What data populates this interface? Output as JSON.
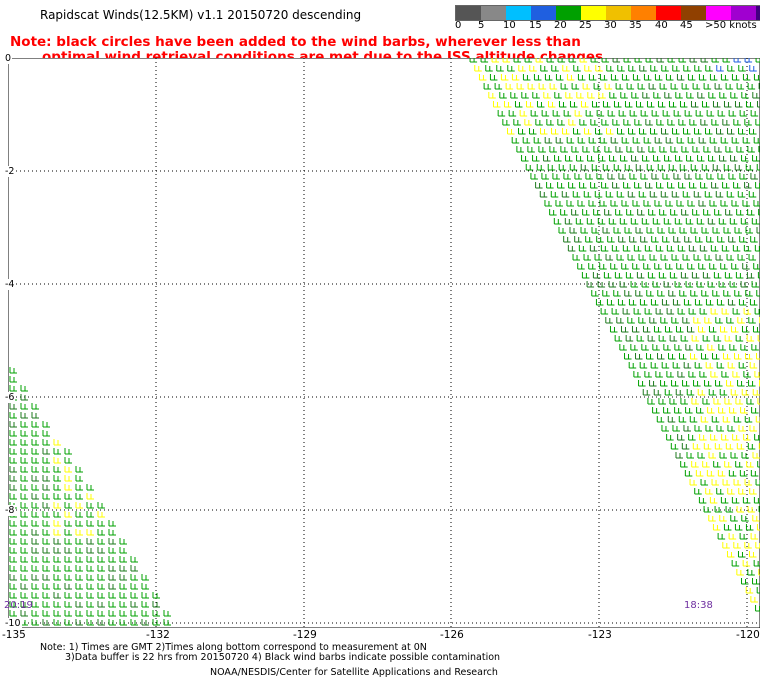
{
  "title": "Rapidscat Winds(12.5KM) v1.1 20150720 descending",
  "notes": [
    "Note: black circles have been added to the wind barbs, wherever less than",
    "optimal wind retrieval conditions are met due to the ISS altitude changes."
  ],
  "legend": {
    "colors": [
      "#555555",
      "#888888",
      "#00bfff",
      "#1f5fe0",
      "#00a000",
      "#ffff00",
      "#f0c000",
      "#ff8000",
      "#ff0000",
      "#904000",
      "#ff00ff",
      "#a000d0",
      "#400080"
    ],
    "labels": [
      "0",
      "5",
      "10",
      "15",
      "20",
      "25",
      "30",
      "35",
      "40",
      "45",
      ">50 knots"
    ]
  },
  "lat_labels": [
    "0",
    "-2",
    "-4",
    "-6",
    "-8",
    "-10"
  ],
  "lon_labels": [
    "-135",
    "-132",
    "-129",
    "-126",
    "-123",
    "-120"
  ],
  "pass_times": [
    "20:19",
    "18:38"
  ],
  "footnotes": [
    "Note: 1) Times are GMT 2)Times along bottom correspond to measurement at 0N",
    "3)Data buffer is 22 hrs from 20150720 4) Black wind barbs indicate possible contamination"
  ],
  "credit": "NOAA/NESDIS/Center for Satellite Applications and Research",
  "colors": {
    "low_wind": "#00a000",
    "mid_wind": "#ffff00",
    "strong_wind": "#1f5fe0",
    "note_text": "#ff0000",
    "time_label": "#6f2fa0"
  }
}
